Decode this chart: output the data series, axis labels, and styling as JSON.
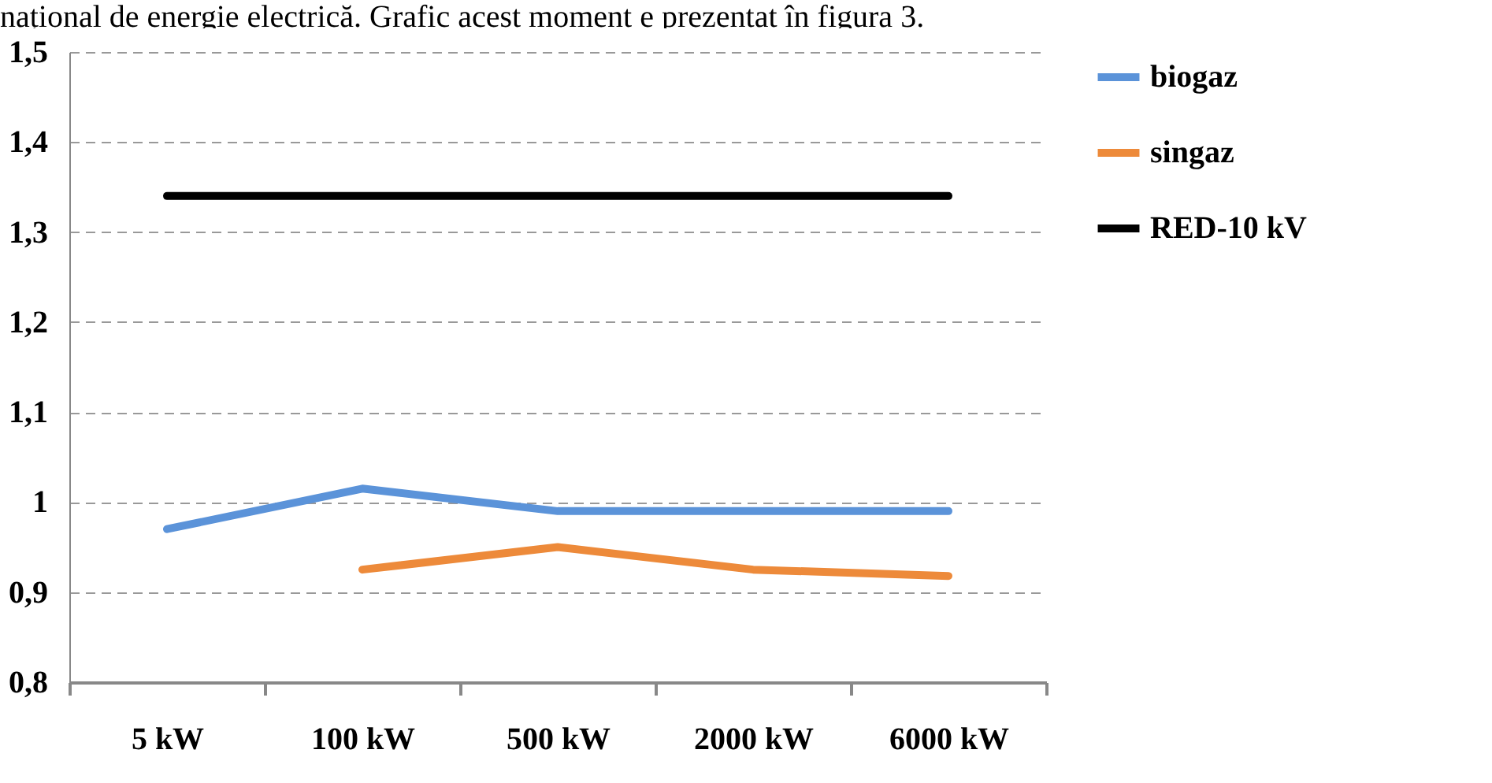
{
  "chart_data": {
    "type": "line",
    "categories": [
      "5 kW",
      "100 kW",
      "500 kW",
      "2000 kW",
      "6000 kW"
    ],
    "series": [
      {
        "name": "biogaz",
        "color": "#5b93d9",
        "values": [
          0.97,
          1.015,
          0.99,
          0.99,
          0.99
        ]
      },
      {
        "name": "singaz",
        "color": "#ed8a3a",
        "values": [
          null,
          0.925,
          0.95,
          0.925,
          0.918
        ]
      },
      {
        "name": "RED-10 kV",
        "color": "#000000",
        "values": [
          1.34,
          1.34,
          1.34,
          1.34,
          1.34
        ]
      }
    ],
    "ylim": [
      0.8,
      1.5
    ],
    "yticks": [
      {
        "value": 0.8,
        "label": "0,8"
      },
      {
        "value": 0.9,
        "label": "0,9"
      },
      1,
      {
        "value": 1.1,
        "label": "1,1"
      },
      {
        "value": 1.2,
        "label": "1,2"
      },
      {
        "value": 1.3,
        "label": "1,3"
      },
      {
        "value": 1.4,
        "label": "1,4"
      },
      {
        "value": 1.5,
        "label": "1,5"
      }
    ],
    "grid": "y",
    "line_style": "solid",
    "legend": "right",
    "annotations": [
      "național de energie electrică. Grafic acest moment e prezentat în figura 3."
    ]
  }
}
